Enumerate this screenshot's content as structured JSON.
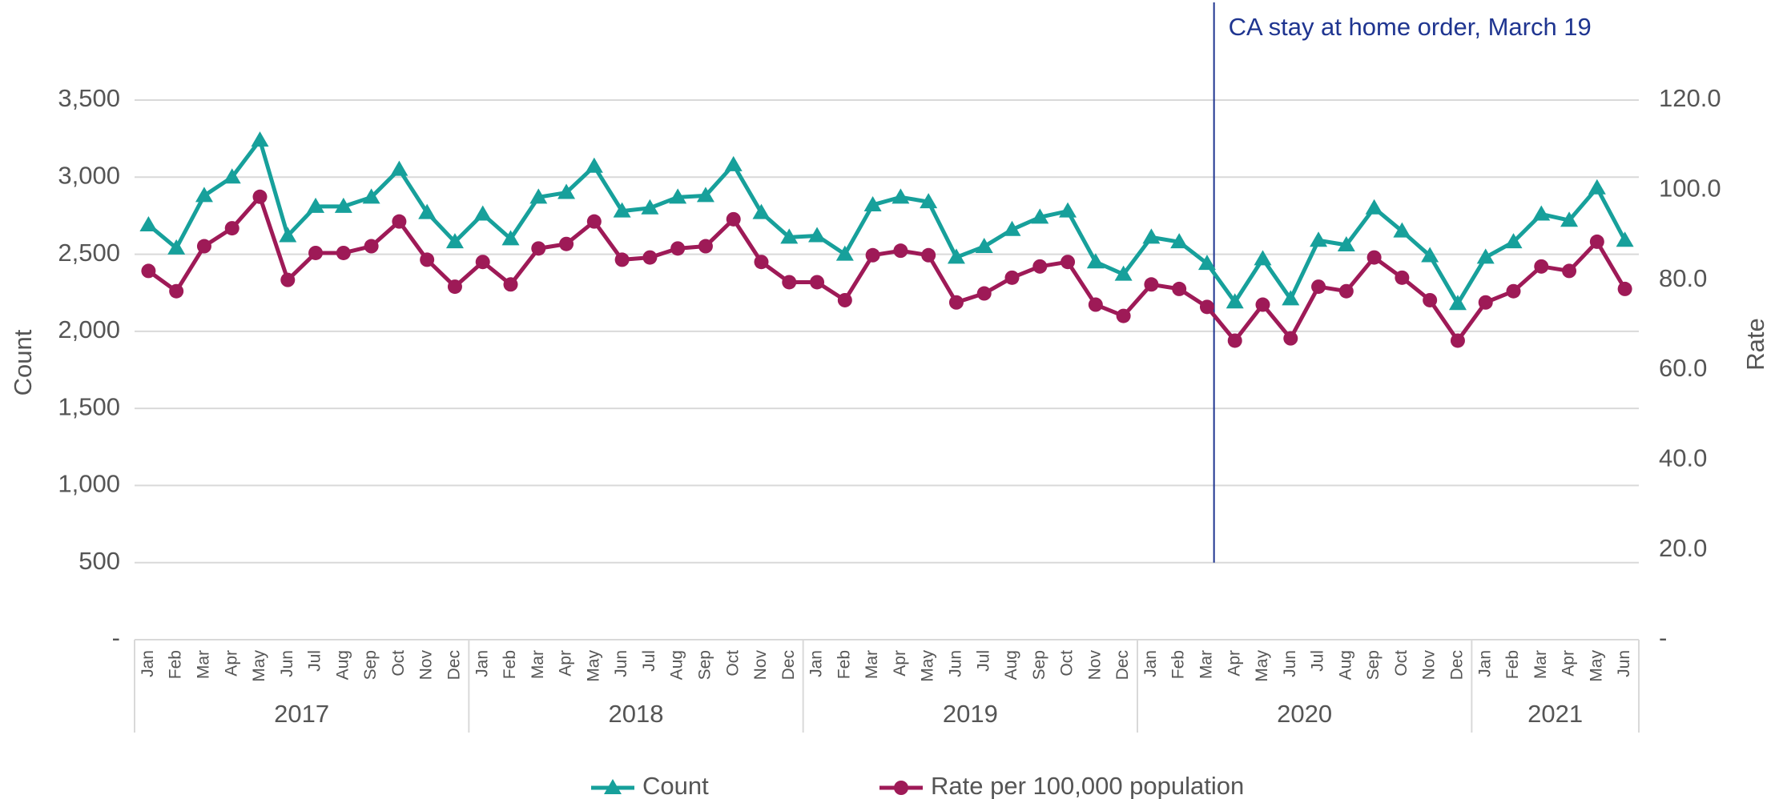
{
  "chart_data": {
    "type": "line",
    "categories": [
      "Jan",
      "Feb",
      "Mar",
      "Apr",
      "May",
      "Jun",
      "Jul",
      "Aug",
      "Sep",
      "Oct",
      "Nov",
      "Dec",
      "Jan",
      "Feb",
      "Mar",
      "Apr",
      "May",
      "Jun",
      "Jul",
      "Aug",
      "Sep",
      "Oct",
      "Nov",
      "Dec",
      "Jan",
      "Feb",
      "Mar",
      "Apr",
      "May",
      "Jun",
      "Jul",
      "Aug",
      "Sep",
      "Oct",
      "Nov",
      "Dec",
      "Jan",
      "Feb",
      "Mar",
      "Apr",
      "May",
      "Jun",
      "Jul",
      "Aug",
      "Sep",
      "Oct",
      "Nov",
      "Dec",
      "Jan",
      "Feb",
      "Mar",
      "Apr",
      "May",
      "Jun"
    ],
    "groups": [
      {
        "name": "2017",
        "span": 12
      },
      {
        "name": "2018",
        "span": 12
      },
      {
        "name": "2019",
        "span": 12
      },
      {
        "name": "2020",
        "span": 12
      },
      {
        "name": "2021",
        "span": 6
      }
    ],
    "series": [
      {
        "name": "Count",
        "color": "#17a09b",
        "marker": "triangle",
        "values": [
          2690,
          2540,
          2880,
          3000,
          3240,
          2620,
          2810,
          2810,
          2870,
          3050,
          2770,
          2580,
          2760,
          2600,
          2870,
          2900,
          3070,
          2780,
          2800,
          2870,
          2880,
          3080,
          2770,
          2610,
          2620,
          2500,
          2820,
          2870,
          2840,
          2480,
          2550,
          2660,
          2740,
          2780,
          2450,
          2370,
          2610,
          2580,
          2440,
          2190,
          2470,
          2210,
          2590,
          2560,
          2800,
          2650,
          2490,
          2180,
          2480,
          2580,
          2760,
          2720,
          2930,
          2590
        ]
      },
      {
        "name": "Rate per 100,000 population",
        "color": "#9e1a57",
        "marker": "circle",
        "axis": "y2",
        "values": [
          82.0,
          77.5,
          87.5,
          91.5,
          98.5,
          80.0,
          86.0,
          86.0,
          87.5,
          93.0,
          84.5,
          78.5,
          84.0,
          79.0,
          87.0,
          88.0,
          93.0,
          84.5,
          85.0,
          87.0,
          87.5,
          93.5,
          84.0,
          79.5,
          79.5,
          75.5,
          85.5,
          86.5,
          85.5,
          75.0,
          77.0,
          80.5,
          83.0,
          84.0,
          74.5,
          72.0,
          79.0,
          78.0,
          74.0,
          66.5,
          74.5,
          67.0,
          78.5,
          77.5,
          85.0,
          80.5,
          75.5,
          66.5,
          75.0,
          77.5,
          83.0,
          82.0,
          88.5,
          78.0
        ]
      }
    ],
    "y_label": "Count",
    "y2_label": "Rate",
    "ylim": [
      0,
      3500
    ],
    "yticks": [
      {
        "value": 0,
        "label": "-"
      },
      500,
      {
        "value": 1000,
        "label": "1,000"
      },
      {
        "value": 1500,
        "label": "1,500"
      },
      {
        "value": 2000,
        "label": "2,000"
      },
      {
        "value": 2500,
        "label": "2,500"
      },
      {
        "value": 3000,
        "label": "3,000"
      },
      {
        "value": 3500,
        "label": "3,500"
      }
    ],
    "y2lim": [
      0,
      120
    ],
    "y2ticks": [
      {
        "value": 0,
        "label": "-"
      },
      {
        "value": 20,
        "label": "20.0"
      },
      {
        "value": 40,
        "label": "40.0"
      },
      {
        "value": 60,
        "label": "60.0"
      },
      {
        "value": 80,
        "label": "80.0"
      },
      {
        "value": 100,
        "label": "100.0"
      },
      {
        "value": 120,
        "label": "120.0"
      }
    ],
    "grid": true,
    "legend": "bottom",
    "annotations": [
      {
        "text": "CA stay at home order, March 19",
        "color": "#1f3590"
      }
    ]
  }
}
